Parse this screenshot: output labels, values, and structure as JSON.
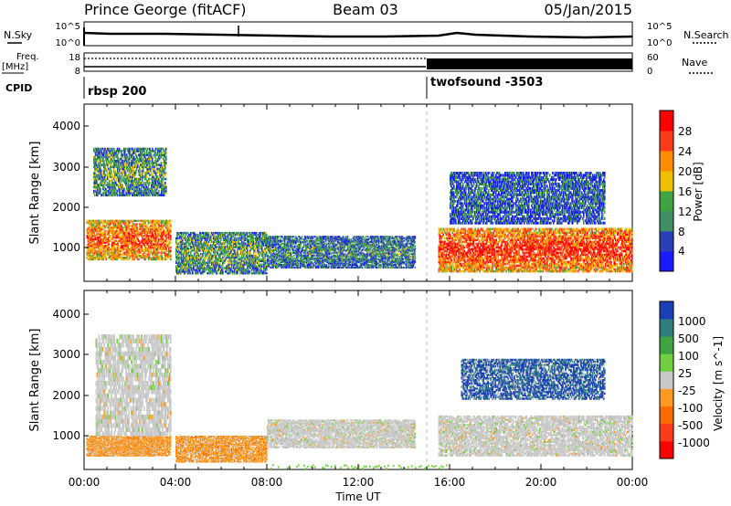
{
  "header": {
    "station": "Prince George (fitACF)",
    "beam": "Beam 03",
    "date": "05/Jan/2015"
  },
  "status_panels": {
    "nsky_label": "N.Sky",
    "nsearch_label": "N.Search",
    "nsky_ticks": [
      "10^5",
      "10^0"
    ],
    "nsearch_ticks": [
      "10^5",
      "10^0"
    ],
    "freq_label_1": "Freq.",
    "freq_label_2": "[MHz]",
    "freq_ticks": [
      "18",
      "8"
    ],
    "nave_label": "Nave",
    "nave_ticks": [
      "60",
      "0"
    ],
    "cpid_label": "CPID",
    "cpid_modes": [
      {
        "name": "rbsp 200",
        "start_hour": 0
      },
      {
        "name": "twofsound -3503",
        "start_hour": 15
      }
    ]
  },
  "axes": {
    "xlabel": "Time UT",
    "ylabel": "Slant Range [km]",
    "x_ticks": [
      "00:00",
      "04:00",
      "08:00",
      "12:00",
      "16:00",
      "20:00",
      "00:00"
    ],
    "y_ticks": [
      "1000",
      "2000",
      "3000",
      "4000"
    ]
  },
  "chart_data": [
    {
      "type": "heatmap",
      "panel": "power",
      "ylabel": "Slant Range [km]",
      "colorbar_label": "Power [dB]",
      "colorbar_ticks": [
        "4",
        "8",
        "12",
        "16",
        "20",
        "24",
        "28"
      ],
      "colorbar_colors": [
        "#1a1aff",
        "#2a3fb8",
        "#3f8f66",
        "#3fa43f",
        "#f0c000",
        "#ff8c00",
        "#ff3a1a",
        "#ff0000"
      ],
      "x_range_hours": [
        0,
        24
      ],
      "ylim_km": [
        180,
        4600
      ],
      "regions": [
        {
          "t0": 0.1,
          "t1": 3.8,
          "r0": 700,
          "r1": 1700,
          "power_db": 24
        },
        {
          "t0": 0.4,
          "t1": 3.6,
          "r0": 2300,
          "r1": 3500,
          "power_db": 14
        },
        {
          "t0": 4.0,
          "t1": 8.0,
          "r0": 350,
          "r1": 1400,
          "power_db": 14
        },
        {
          "t0": 8.0,
          "t1": 14.5,
          "r0": 500,
          "r1": 1300,
          "power_db": 12
        },
        {
          "t0": 15.5,
          "t1": 24.0,
          "r0": 400,
          "r1": 1500,
          "power_db": 26
        },
        {
          "t0": 16.0,
          "t1": 22.8,
          "r0": 1600,
          "r1": 2900,
          "power_db": 10
        }
      ]
    },
    {
      "type": "heatmap",
      "panel": "velocity",
      "ylabel": "Slant Range [km]",
      "colorbar_label": "Velocity [m s^-1]",
      "colorbar_ticks": [
        "1000",
        "500",
        "100",
        "25",
        "-25",
        "-100",
        "-500",
        "-1000"
      ],
      "colorbar_colors": [
        "#1a3fb8",
        "#2f7f7f",
        "#3fa43f",
        "#6fcf3f",
        "#c8c8c8",
        "#ff9a20",
        "#ff6a00",
        "#ff3a1a",
        "#ff0000"
      ],
      "x_range_hours": [
        0,
        24
      ],
      "ylim_km": [
        180,
        4600
      ],
      "regions": [
        {
          "t0": 0.1,
          "t1": 3.8,
          "r0": 500,
          "r1": 1000,
          "velocity": -100
        },
        {
          "t0": 0.5,
          "t1": 3.8,
          "r0": 1000,
          "r1": 3500,
          "velocity": 0
        },
        {
          "t0": 4.0,
          "t1": 8.0,
          "r0": 350,
          "r1": 1000,
          "velocity": -100
        },
        {
          "t0": 8.0,
          "t1": 14.5,
          "r0": 700,
          "r1": 1400,
          "velocity": 0
        },
        {
          "t0": 15.5,
          "t1": 24.0,
          "r0": 500,
          "r1": 1500,
          "velocity": 0
        },
        {
          "t0": 16.5,
          "t1": 22.8,
          "r0": 1900,
          "r1": 2900,
          "velocity": 500
        }
      ]
    }
  ]
}
